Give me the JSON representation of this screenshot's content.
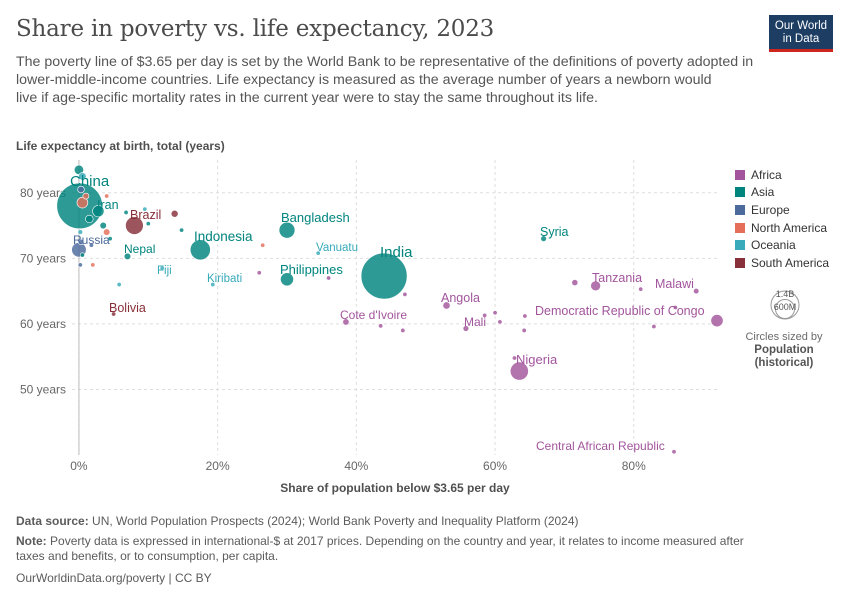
{
  "header": {
    "title": "Share in poverty vs. life expectancy, 2023",
    "subtitle_lines": [
      "The poverty line of $3.65 per day is set by the World Bank to be representative of the definitions of poverty adopted in",
      "lower-middle-income countries. Life expectancy is measured as the average number of years a newborn would",
      "live if age-specific mortality rates in the current year were to stay the same throughout its life."
    ],
    "logo_line1": "Our World",
    "logo_line2": "in Data"
  },
  "colors": {
    "Africa": "#a2559c",
    "Asia": "#00847e",
    "Europe": "#4c6a9c",
    "North America": "#e56e5a",
    "Oceania": "#38aaba",
    "South America": "#883039"
  },
  "size_legend": {
    "big_label": "1.4B",
    "small_label": "600M",
    "caption": "Circles sized by",
    "variable_line1": "Population",
    "variable_line2": "(historical)"
  },
  "footer": {
    "source_label": "Data source:",
    "source_text": "UN, World Population Prospects (2024); World Bank Poverty and Inequality Platform (2024)",
    "note_label": "Note:",
    "note_line1": "Poverty data is expressed in international-$ at 2017 prices. Depending on the country and year, it relates to income measured after",
    "note_line2": "taxes and benefits, or to consumption, per capita.",
    "license": "OurWorldinData.org/poverty | CC BY"
  },
  "chart_data": {
    "type": "scatter",
    "title": "Share in poverty vs. life expectancy, 2023",
    "xlabel": "Share of population below $3.65 per day",
    "ylabel": "Life expectancy at birth, total (years)",
    "xlim": [
      -1,
      92
    ],
    "ylim": [
      40,
      85
    ],
    "x_ticks": [
      0,
      20,
      40,
      60,
      80
    ],
    "x_tick_labels": [
      "0%",
      "20%",
      "40%",
      "60%",
      "80%"
    ],
    "y_ticks": [
      50,
      60,
      70,
      80
    ],
    "y_tick_labels": [
      "50 years",
      "60 years",
      "70 years",
      "80 years"
    ],
    "grid": true,
    "legend_position": "right",
    "legend": [
      "Africa",
      "Asia",
      "Europe",
      "North America",
      "Oceania",
      "South America"
    ],
    "points": [
      {
        "label": "China",
        "x": 0.1,
        "y": 78.0,
        "pop": 1410,
        "region": "Asia"
      },
      {
        "label": "India",
        "x": 44.0,
        "y": 67.3,
        "pop": 1430,
        "region": "Asia"
      },
      {
        "label": "Iran",
        "x": 2.8,
        "y": 77.2,
        "pop": 89,
        "region": "Asia"
      },
      {
        "label": "Brazil",
        "x": 8.0,
        "y": 75.0,
        "pop": 216,
        "region": "South America"
      },
      {
        "label": "Russia",
        "x": 0.0,
        "y": 71.3,
        "pop": 144,
        "region": "Europe"
      },
      {
        "label": "Nepal",
        "x": 7.0,
        "y": 70.3,
        "pop": 30,
        "region": "Asia"
      },
      {
        "label": "Fiji",
        "x": 12.0,
        "y": 68.5,
        "pop": 1,
        "region": "Oceania"
      },
      {
        "label": "Bolivia",
        "x": 5.0,
        "y": 61.5,
        "pop": 12,
        "region": "South America"
      },
      {
        "label": "Indonesia",
        "x": 17.5,
        "y": 71.3,
        "pop": 277,
        "region": "Asia"
      },
      {
        "label": "Kiribati",
        "x": 19.3,
        "y": 66.0,
        "pop": 1,
        "region": "Oceania"
      },
      {
        "label": "Bangladesh",
        "x": 30.0,
        "y": 74.3,
        "pop": 172,
        "region": "Asia"
      },
      {
        "label": "Vanuatu",
        "x": 34.5,
        "y": 70.8,
        "pop": 1,
        "region": "Oceania"
      },
      {
        "label": "Philippines",
        "x": 30.0,
        "y": 66.8,
        "pop": 117,
        "region": "Asia"
      },
      {
        "label": "Cote d'Ivoire",
        "x": 38.5,
        "y": 60.3,
        "pop": 28,
        "region": "Africa"
      },
      {
        "label": "Angola",
        "x": 53.0,
        "y": 62.8,
        "pop": 36,
        "region": "Africa"
      },
      {
        "label": "Mali",
        "x": 55.8,
        "y": 59.3,
        "pop": 23,
        "region": "Africa"
      },
      {
        "label": "Syria",
        "x": 67.0,
        "y": 73.0,
        "pop": 23,
        "region": "Asia"
      },
      {
        "label": "Tanzania",
        "x": 74.5,
        "y": 65.8,
        "pop": 67,
        "region": "Africa"
      },
      {
        "label": "Malawi",
        "x": 89.0,
        "y": 65.0,
        "pop": 21,
        "region": "Africa"
      },
      {
        "label": "Democratic Republic of Congo",
        "x": 92.0,
        "y": 60.5,
        "pop": 102,
        "region": "Africa"
      },
      {
        "label": "Nigeria",
        "x": 63.5,
        "y": 52.8,
        "pop": 224,
        "region": "Africa"
      },
      {
        "label": "Central African Republic",
        "x": 85.8,
        "y": 40.5,
        "pop": 6,
        "region": "Africa"
      }
    ],
    "unlabeled_points": [
      {
        "x": 0.0,
        "y": 83.5,
        "pop": 60,
        "region": "Asia"
      },
      {
        "x": 0.5,
        "y": 82.5,
        "pop": 40,
        "region": "Oceania"
      },
      {
        "x": 0.3,
        "y": 80.5,
        "pop": 30,
        "region": "Europe"
      },
      {
        "x": 1.0,
        "y": 79.5,
        "pop": 25,
        "region": "North America"
      },
      {
        "x": 0.5,
        "y": 78.5,
        "pop": 80,
        "region": "North America"
      },
      {
        "x": 1.5,
        "y": 76.0,
        "pop": 40,
        "region": "Asia"
      },
      {
        "x": 0.2,
        "y": 74.0,
        "pop": 15,
        "region": "Oceania"
      },
      {
        "x": 0.3,
        "y": 72.5,
        "pop": 20,
        "region": "Europe"
      },
      {
        "x": 1.8,
        "y": 72.0,
        "pop": 8,
        "region": "Europe"
      },
      {
        "x": 0.5,
        "y": 70.5,
        "pop": 10,
        "region": "Asia"
      },
      {
        "x": 0.2,
        "y": 69.0,
        "pop": 5,
        "region": "Europe"
      },
      {
        "x": 2.0,
        "y": 69.0,
        "pop": 5,
        "region": "North America"
      },
      {
        "x": 4.0,
        "y": 79.5,
        "pop": 5,
        "region": "North America"
      },
      {
        "x": 3.5,
        "y": 75.0,
        "pop": 30,
        "region": "Asia"
      },
      {
        "x": 4.0,
        "y": 74.0,
        "pop": 30,
        "region": "North America"
      },
      {
        "x": 4.5,
        "y": 73.0,
        "pop": 10,
        "region": "Asia"
      },
      {
        "x": 6.8,
        "y": 77.0,
        "pop": 5,
        "region": "Asia"
      },
      {
        "x": 9.5,
        "y": 77.5,
        "pop": 6,
        "region": "Oceania"
      },
      {
        "x": 10.0,
        "y": 75.3,
        "pop": 8,
        "region": "Asia"
      },
      {
        "x": 13.8,
        "y": 76.8,
        "pop": 34,
        "region": "South America"
      },
      {
        "x": 14.8,
        "y": 74.3,
        "pop": 6,
        "region": "Asia"
      },
      {
        "x": 5.8,
        "y": 66.0,
        "pop": 4,
        "region": "Oceania"
      },
      {
        "x": 26.0,
        "y": 67.8,
        "pop": 10,
        "region": "Africa"
      },
      {
        "x": 26.5,
        "y": 72.0,
        "pop": 6,
        "region": "North America"
      },
      {
        "x": 36.0,
        "y": 67.0,
        "pop": 5,
        "region": "Africa"
      },
      {
        "x": 43.5,
        "y": 59.7,
        "pop": 8,
        "region": "Africa"
      },
      {
        "x": 46.7,
        "y": 59.0,
        "pop": 8,
        "region": "Africa"
      },
      {
        "x": 47.0,
        "y": 64.5,
        "pop": 8,
        "region": "Africa"
      },
      {
        "x": 58.5,
        "y": 61.3,
        "pop": 6,
        "region": "Africa"
      },
      {
        "x": 60.0,
        "y": 61.7,
        "pop": 6,
        "region": "Africa"
      },
      {
        "x": 60.7,
        "y": 60.3,
        "pop": 6,
        "region": "Africa"
      },
      {
        "x": 64.3,
        "y": 61.2,
        "pop": 6,
        "region": "Africa"
      },
      {
        "x": 64.2,
        "y": 59.0,
        "pop": 6,
        "region": "Africa"
      },
      {
        "x": 62.8,
        "y": 54.8,
        "pop": 10,
        "region": "Africa"
      },
      {
        "x": 71.5,
        "y": 66.3,
        "pop": 26,
        "region": "Africa"
      },
      {
        "x": 81.0,
        "y": 65.3,
        "pop": 8,
        "region": "Africa"
      },
      {
        "x": 82.9,
        "y": 59.6,
        "pop": 12,
        "region": "Africa"
      },
      {
        "x": 86.0,
        "y": 62.5,
        "pop": 8,
        "region": "Africa"
      }
    ]
  }
}
